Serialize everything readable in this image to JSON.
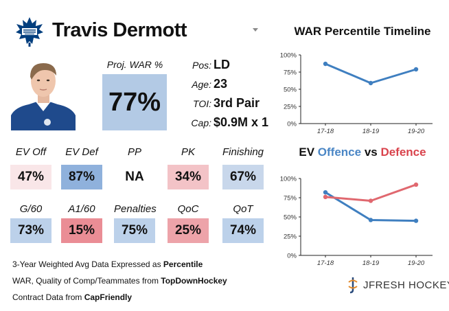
{
  "header": {
    "player_name": "Travis Dermott"
  },
  "proj_war": {
    "label": "Proj. WAR %",
    "value": "77%"
  },
  "info": [
    {
      "label": "Pos:",
      "value": "LD"
    },
    {
      "label": "Age:",
      "value": "23"
    },
    {
      "label": "TOI:",
      "value": "3rd Pair"
    },
    {
      "label": "Cap:",
      "value": "$0.9M x 1"
    }
  ],
  "stats": [
    {
      "label": "EV Off",
      "value": "47%",
      "color": "#f9e6e8"
    },
    {
      "label": "EV Def",
      "value": "87%",
      "color": "#8fb1dc"
    },
    {
      "label": "PP",
      "value": "NA",
      "color": "#ffffff"
    },
    {
      "label": "PK",
      "value": "34%",
      "color": "#f3c3c7"
    },
    {
      "label": "Finishing",
      "value": "67%",
      "color": "#c8d7eb"
    },
    {
      "label": "G/60",
      "value": "73%",
      "color": "#bcd1ea"
    },
    {
      "label": "A1/60",
      "value": "15%",
      "color": "#ea8d95"
    },
    {
      "label": "Penalties",
      "value": "75%",
      "color": "#bcd1ea"
    },
    {
      "label": "QoC",
      "value": "25%",
      "color": "#eda3a9"
    },
    {
      "label": "QoT",
      "value": "74%",
      "color": "#bcd1ea"
    }
  ],
  "footer": {
    "line1_prefix": "3-Year Weighted Avg Data Expressed as ",
    "line1_bold": "Percentile",
    "line2_prefix": "WAR, Quality of Comp/Teammates from ",
    "line2_bold": "TopDownHockey",
    "line3_prefix": "Contract Data from ",
    "line3_bold": "CapFriendly"
  },
  "brand": {
    "text": "JFRESH HOCKEY"
  },
  "chart_titles": {
    "war_timeline": "WAR Percentile Timeline",
    "ev_part1": "EV ",
    "ev_offence": "Offence",
    "ev_vs": " vs ",
    "ev_defence": "Defence"
  },
  "colors": {
    "blue": "#3f7fc0",
    "red": "#e0686f",
    "offence_text": "#4a86c5",
    "defence_text": "#d9434c"
  },
  "chart_data": [
    {
      "type": "line",
      "title": "WAR Percentile Timeline",
      "categories": [
        "17-18",
        "18-19",
        "19-20"
      ],
      "series": [
        {
          "values": [
            87,
            59,
            79
          ],
          "color": "#3f7fc0"
        }
      ],
      "ylim": [
        0,
        100
      ],
      "yticks": [
        "0%",
        "25%",
        "50%",
        "75%",
        "100%"
      ],
      "grid": false
    },
    {
      "type": "line",
      "title": "EV Offence vs Defence",
      "categories": [
        "17-18",
        "18-19",
        "19-20"
      ],
      "series": [
        {
          "name": "Offence",
          "values": [
            82,
            46,
            45
          ],
          "color": "#3f7fc0"
        },
        {
          "name": "Defence",
          "values": [
            76,
            71,
            92
          ],
          "color": "#e0686f"
        }
      ],
      "ylim": [
        0,
        100
      ],
      "yticks": [
        "0%",
        "25%",
        "50%",
        "75%",
        "100%"
      ],
      "grid": false
    }
  ]
}
